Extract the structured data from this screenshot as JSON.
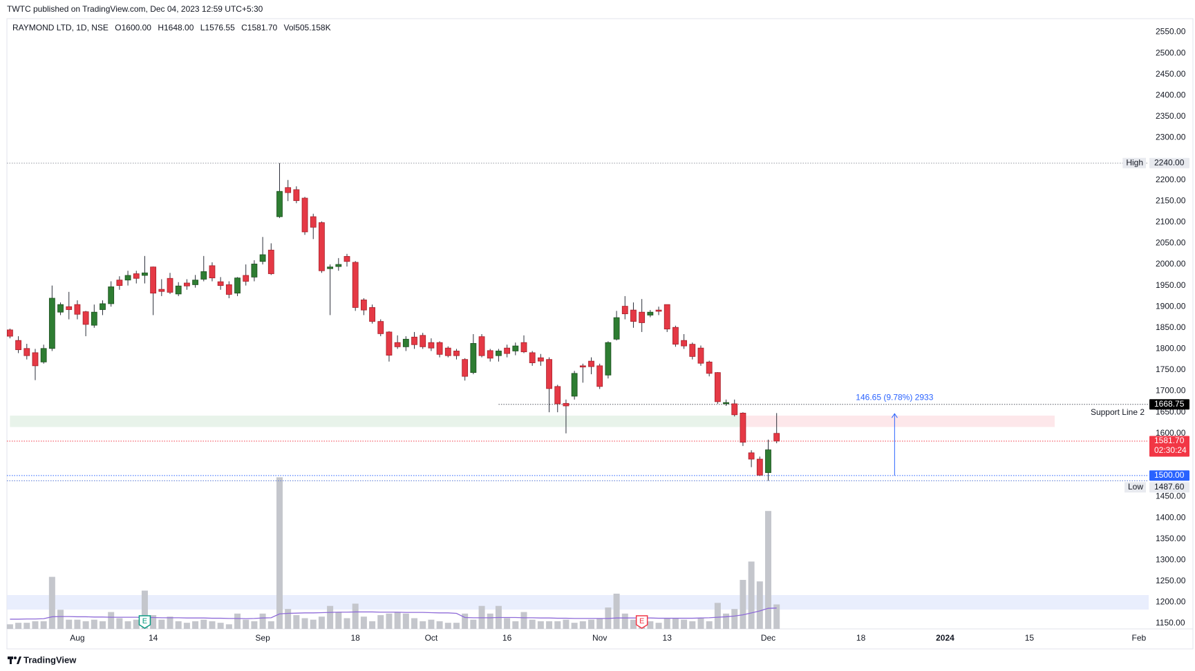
{
  "chart_data": {
    "type": "candlestick",
    "header": "TWTC published on TradingView.com, Dec 04, 2023 12:59 UTC+5:30",
    "legend": {
      "symbol": "RAYMOND LTD, 1D, NSE",
      "items": [
        "O1600.00",
        "H1648.00",
        "L1576.55",
        "C1581.70",
        "Vol505.158K"
      ]
    },
    "footer": "TradingView",
    "x": [
      "2023-07-20",
      "2023-07-21",
      "2023-07-24",
      "2023-07-25",
      "2023-07-26",
      "2023-07-27",
      "2023-07-28",
      "2023-07-31",
      "2023-08-01",
      "2023-08-02",
      "2023-08-03",
      "2023-08-04",
      "2023-08-07",
      "2023-08-08",
      "2023-08-09",
      "2023-08-10",
      "2023-08-11",
      "2023-08-14",
      "2023-08-16",
      "2023-08-17",
      "2023-08-18",
      "2023-08-21",
      "2023-08-22",
      "2023-08-23",
      "2023-08-24",
      "2023-08-25",
      "2023-08-28",
      "2023-08-29",
      "2023-08-30",
      "2023-08-31",
      "2023-09-01",
      "2023-09-04",
      "2023-09-05",
      "2023-09-06",
      "2023-09-07",
      "2023-09-08",
      "2023-09-11",
      "2023-09-12",
      "2023-09-13",
      "2023-09-14",
      "2023-09-15",
      "2023-09-18",
      "2023-09-20",
      "2023-09-21",
      "2023-09-22",
      "2023-09-25",
      "2023-09-26",
      "2023-09-27",
      "2023-09-28",
      "2023-09-29",
      "2023-10-03",
      "2023-10-04",
      "2023-10-05",
      "2023-10-06",
      "2023-10-09",
      "2023-10-10",
      "2023-10-11",
      "2023-10-12",
      "2023-10-13",
      "2023-10-16",
      "2023-10-17",
      "2023-10-18",
      "2023-10-19",
      "2023-10-20",
      "2023-10-23",
      "2023-10-25",
      "2023-10-26",
      "2023-10-27",
      "2023-10-30",
      "2023-10-31",
      "2023-11-01",
      "2023-11-02",
      "2023-11-03",
      "2023-11-06",
      "2023-11-07",
      "2023-11-08",
      "2023-11-09",
      "2023-11-10",
      "2023-11-13",
      "2023-11-15",
      "2023-11-16",
      "2023-11-17",
      "2023-11-20",
      "2023-11-21",
      "2023-11-22",
      "2023-11-23",
      "2023-11-24",
      "2023-11-28",
      "2023-11-29",
      "2023-11-30",
      "2023-12-01",
      "2023-12-04"
    ],
    "open": [
      1845,
      1820,
      1801,
      1791,
      1769,
      1801,
      1887,
      1900,
      1905,
      1888,
      1856,
      1893,
      1907,
      1963,
      1963,
      1978,
      1974,
      1994,
      1941,
      1967,
      1930,
      1956,
      1952,
      1965,
      1997,
      1959,
      1952,
      1932,
      1974,
      1970,
      2007,
      2034,
      2113,
      2182,
      2177,
      2157,
      2113,
      2099,
      1990,
      1995,
      2019,
      2005,
      1916,
      1898,
      1865,
      1840,
      1815,
      1805,
      1828,
      1832,
      1815,
      1815,
      1802,
      1795,
      1775,
      1744,
      1829,
      1796,
      1784,
      1802,
      1795,
      1815,
      1791,
      1779,
      1775,
      1711,
      1671,
      1688,
      1760,
      1771,
      1760,
      1738,
      1823,
      1901,
      1892,
      1887,
      1880,
      1892,
      1905,
      1851,
      1820,
      1811,
      1802,
      1769,
      1744,
      1670,
      1670,
      1648,
      1554,
      1539,
      1507,
      1600
    ],
    "high": [
      1848,
      1830,
      1812,
      1800,
      1810,
      1950,
      1910,
      1935,
      1915,
      1890,
      1905,
      1915,
      1960,
      1972,
      1985,
      1985,
      2020,
      1995,
      1965,
      1980,
      1958,
      1965,
      1975,
      2020,
      2005,
      1970,
      1960,
      1970,
      2000,
      2010,
      2065,
      2050,
      2240,
      2200,
      2185,
      2160,
      2120,
      2102,
      2000,
      2015,
      2025,
      2008,
      1920,
      1905,
      1870,
      1842,
      1832,
      1830,
      1840,
      1838,
      1825,
      1818,
      1806,
      1800,
      1778,
      1835,
      1835,
      1800,
      1800,
      1810,
      1815,
      1832,
      1795,
      1788,
      1780,
      1715,
      1680,
      1748,
      1765,
      1780,
      1765,
      1818,
      1890,
      1925,
      1910,
      1918,
      1892,
      1900,
      1905,
      1855,
      1835,
      1815,
      1808,
      1772,
      1745,
      1680,
      1680,
      1650,
      1560,
      1545,
      1585,
      1648
    ],
    "low": [
      1825,
      1790,
      1775,
      1726,
      1765,
      1795,
      1880,
      1870,
      1870,
      1830,
      1850,
      1880,
      1900,
      1940,
      1950,
      1955,
      1955,
      1880,
      1925,
      1930,
      1925,
      1940,
      1945,
      1960,
      1960,
      1940,
      1920,
      1925,
      1950,
      1960,
      2000,
      1975,
      2110,
      2150,
      2145,
      2070,
      2060,
      1980,
      1880,
      1985,
      1995,
      1890,
      1880,
      1860,
      1830,
      1770,
      1800,
      1795,
      1800,
      1800,
      1795,
      1780,
      1780,
      1775,
      1725,
      1740,
      1780,
      1770,
      1770,
      1780,
      1785,
      1790,
      1760,
      1760,
      1650,
      1650,
      1600,
      1680,
      1720,
      1740,
      1705,
      1730,
      1820,
      1870,
      1850,
      1840,
      1875,
      1880,
      1840,
      1805,
      1800,
      1775,
      1760,
      1735,
      1670,
      1665,
      1640,
      1570,
      1520,
      1499,
      1487.6,
      1576.55
    ],
    "close": [
      1830,
      1798,
      1784,
      1760,
      1801,
      1920,
      1905,
      1893,
      1882,
      1858,
      1887,
      1907,
      1947,
      1950,
      1974,
      1967,
      1980,
      1932,
      1936,
      1934,
      1949,
      1949,
      1963,
      1983,
      1968,
      1950,
      1929,
      1968,
      1960,
      2001,
      2023,
      1978,
      2173,
      2170,
      2151,
      2077,
      2088,
      1985,
      1994,
      2000,
      2007,
      1898,
      1892,
      1865,
      1836,
      1785,
      1805,
      1823,
      1810,
      1805,
      1802,
      1787,
      1784,
      1784,
      1735,
      1813,
      1784,
      1778,
      1795,
      1789,
      1807,
      1793,
      1767,
      1771,
      1706,
      1670,
      1665,
      1742,
      1757,
      1758,
      1711,
      1815,
      1874,
      1883,
      1865,
      1862,
      1887,
      1889,
      1847,
      1811,
      1807,
      1782,
      1766,
      1742,
      1675,
      1673,
      1644,
      1579,
      1539,
      1501,
      1561,
      1581.7
    ],
    "volume": [
      95,
      126,
      126,
      158,
      158,
      1074,
      395,
      190,
      190,
      158,
      190,
      158,
      348,
      221,
      158,
      190,
      790,
      284,
      190,
      253,
      158,
      126,
      158,
      190,
      158,
      126,
      95,
      316,
      190,
      158,
      316,
      158,
      3128,
      411,
      284,
      221,
      190,
      253,
      474,
      348,
      221,
      521,
      253,
      158,
      284,
      316,
      348,
      316,
      221,
      158,
      190,
      158,
      126,
      126,
      316,
      190,
      474,
      316,
      474,
      221,
      158,
      348,
      190,
      158,
      158,
      158,
      190,
      126,
      158,
      190,
      221,
      442,
      727,
      316,
      190,
      221,
      158,
      126,
      221,
      221,
      190,
      158,
      221,
      158,
      537,
      316,
      411,
      1011,
      1390,
      980,
      2433,
      505.158
    ],
    "volume_ma": [
      200,
      200,
      205,
      205,
      210,
      250,
      255,
      255,
      250,
      250,
      245,
      245,
      240,
      240,
      240,
      240,
      235,
      235,
      230,
      230,
      230,
      225,
      225,
      225,
      220,
      220,
      215,
      215,
      210,
      215,
      225,
      230,
      310,
      320,
      325,
      330,
      330,
      335,
      340,
      345,
      345,
      350,
      350,
      350,
      345,
      345,
      345,
      340,
      340,
      340,
      335,
      330,
      330,
      320,
      235,
      230,
      230,
      230,
      235,
      235,
      235,
      230,
      230,
      225,
      225,
      220,
      220,
      215,
      215,
      215,
      215,
      215,
      225,
      225,
      225,
      225,
      225,
      220,
      220,
      220,
      220,
      220,
      225,
      230,
      240,
      250,
      265,
      290,
      330,
      370,
      425,
      430
    ],
    "up_color": "#2e7d32",
    "down_color": "#e53945",
    "volume_color": "#c4c6cc",
    "volume_ma_color": "#8e6ad8",
    "ylim": [
      1137,
      2582
    ],
    "yticks": [
      {
        "value": 2550,
        "label": "2550.00"
      },
      {
        "value": 2500,
        "label": "2500.00"
      },
      {
        "value": 2450,
        "label": "2450.00"
      },
      {
        "value": 2400,
        "label": "2400.00"
      },
      {
        "value": 2350,
        "label": "2350.00"
      },
      {
        "value": 2300,
        "label": "2300.00"
      },
      {
        "value": 2200,
        "label": "2200.00"
      },
      {
        "value": 2150,
        "label": "2150.00"
      },
      {
        "value": 2100,
        "label": "2100.00"
      },
      {
        "value": 2050,
        "label": "2050.00"
      },
      {
        "value": 2000,
        "label": "2000.00"
      },
      {
        "value": 1950,
        "label": "1950.00"
      },
      {
        "value": 1900,
        "label": "1900.00"
      },
      {
        "value": 1850,
        "label": "1850.00"
      },
      {
        "value": 1800,
        "label": "1800.00"
      },
      {
        "value": 1750,
        "label": "1750.00"
      },
      {
        "value": 1700,
        "label": "1700.00"
      },
      {
        "value": 1650,
        "label": "1650.00"
      },
      {
        "value": 1600,
        "label": "1600.00"
      },
      {
        "value": 1450,
        "label": "1450.00"
      },
      {
        "value": 1400,
        "label": "1400.00"
      },
      {
        "value": 1350,
        "label": "1350.00"
      },
      {
        "value": 1300,
        "label": "1300.00"
      },
      {
        "value": 1250,
        "label": "1250.00"
      },
      {
        "value": 1200,
        "label": "1200.00"
      },
      {
        "value": 1150,
        "label": "1150.00"
      }
    ],
    "xticks": [
      {
        "value": "2023-08-01",
        "label": "Aug"
      },
      {
        "value": "2023-08-14",
        "label": "14"
      },
      {
        "value": "2023-09-01",
        "label": "Sep"
      },
      {
        "value": "2023-09-18",
        "label": "18"
      },
      {
        "value": "2023-10-03",
        "label": "Oct"
      },
      {
        "value": "2023-10-16",
        "label": "16"
      },
      {
        "value": "2023-11-01",
        "label": "Nov"
      },
      {
        "value": "2023-11-13",
        "label": "13"
      },
      {
        "value": "2023-12-01",
        "label": "Dec"
      },
      {
        "value": "2023-12-18",
        "label": "18"
      },
      {
        "value": "2024-01-01",
        "label": "2024"
      },
      {
        "value": "2024-01-15",
        "label": "15"
      },
      {
        "value": "2024-02-01",
        "label": "Feb"
      }
    ],
    "price_lines": [
      {
        "name": "High",
        "value": 2240,
        "value_label": "2240.00",
        "color": "#9598a1",
        "badge_bg": "#e8eaef",
        "badge_fg": "#131722"
      },
      {
        "name": "Support Line 2",
        "value": 1668.75,
        "value_label": "1668.75",
        "color": "#50535e",
        "badge_bg": "#000000",
        "badge_fg": "#ffffff",
        "start": "2023-10-13"
      },
      {
        "value": 1581.7,
        "value_label": "1581.70",
        "countdown": "02:30:24",
        "color": "#f23645",
        "badge_bg": "#f23645",
        "badge_fg": "#ffffff"
      },
      {
        "value": 1500,
        "value_label": "1500.00",
        "color": "#2962ff",
        "badge_bg": "#2962ff",
        "badge_fg": "#ffffff"
      },
      {
        "name": "Low",
        "value": 1487.6,
        "value_label": "1487.60",
        "color": "#5b7bd6",
        "badge_bg": "#e8eaef",
        "badge_fg": "#131722"
      }
    ],
    "zones": [
      {
        "top": 1642,
        "bottom": 1615,
        "start": "2023-07-20",
        "end": "2023-11-28",
        "color": "#e8f3ea"
      },
      {
        "top": 1642,
        "bottom": 1615,
        "start": "2023-11-28",
        "end": "2024-01-18",
        "color": "#fde7ea"
      }
    ],
    "measure": {
      "from": 1500,
      "to": 1646.65,
      "date": "2023-12-22",
      "label": "146.65 (9.78%) 2933",
      "color": "#2962ff"
    },
    "events": [
      {
        "date": "2023-08-11",
        "label": "E",
        "color": "#089981"
      },
      {
        "date": "2023-11-08",
        "label": "E",
        "color": "#f23645"
      }
    ]
  }
}
